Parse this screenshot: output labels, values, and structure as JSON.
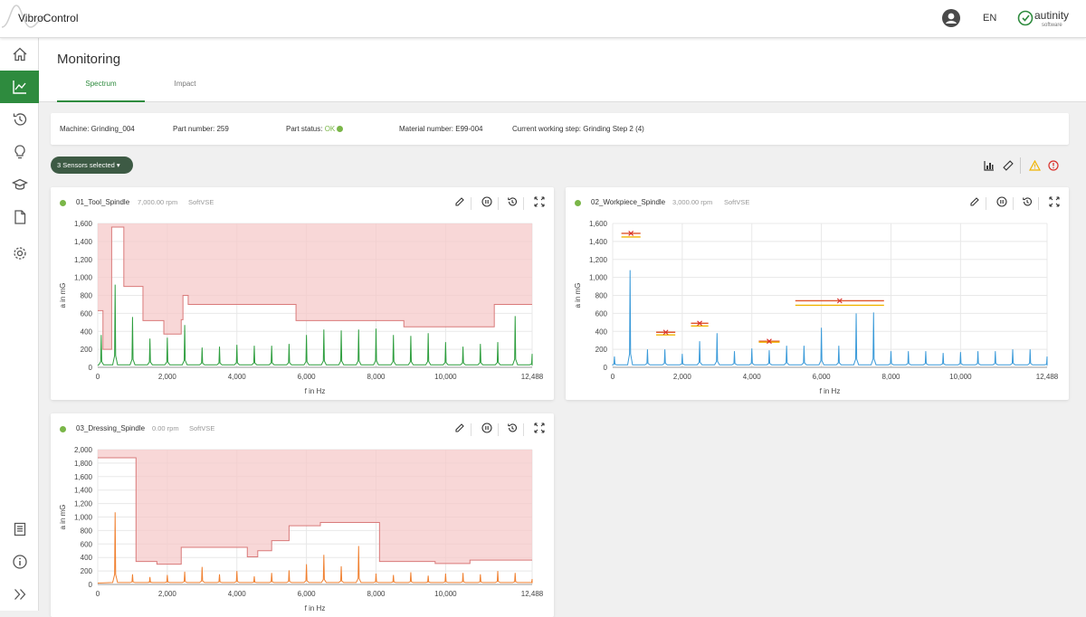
{
  "app": {
    "title": "VibroControl",
    "language": "EN",
    "logo_text": "autinity",
    "logo_sub": "software"
  },
  "sidebar": {
    "items": [
      {
        "icon": "home-icon"
      },
      {
        "icon": "chart-icon",
        "active": true
      },
      {
        "icon": "history-icon"
      },
      {
        "icon": "lightbulb-icon"
      },
      {
        "icon": "graduation-cap-icon"
      },
      {
        "icon": "document-icon"
      },
      {
        "icon": "settings-icon"
      },
      {
        "icon": "book-icon"
      },
      {
        "icon": "info-icon"
      },
      {
        "icon": "expand-icon"
      }
    ]
  },
  "page": {
    "title": "Monitoring",
    "tabs": [
      {
        "label": "Spectrum",
        "active": true
      },
      {
        "label": "Impact"
      }
    ]
  },
  "info": {
    "machine": "Machine: Grinding_004",
    "part_number": "Part number: 259",
    "part_status_label": "Part status:",
    "part_status_value": "OK",
    "material_number": "Material number: E99-004",
    "working_step": "Current working step: Grinding Step 2 (4)"
  },
  "sensors_button": "3 Sensors selected",
  "colors": {
    "accent": "#2e8b3e",
    "status_ok": "#7ab648",
    "warning": "#f0b400",
    "error": "#d9302a",
    "limit_fill": "#f5c9c9",
    "limit_line": "#d97a7a"
  },
  "cards": [
    {
      "name": "01_Tool_Spindle",
      "rpm": "7,000.00 rpm",
      "source": "SoftVSE"
    },
    {
      "name": "02_Workpiece_Spindle",
      "rpm": "3,000.00 rpm",
      "source": "SoftVSE"
    },
    {
      "name": "03_Dressing_Spindle",
      "rpm": "0.00 rpm",
      "source": "SoftVSE"
    }
  ],
  "chart_data": [
    {
      "type": "line",
      "title": "01_Tool_Spindle",
      "xlabel": "f in Hz",
      "ylabel": "a in mG",
      "xlim": [
        0,
        12488
      ],
      "ylim": [
        0,
        1600
      ],
      "grid": true,
      "xticks": [
        "0",
        "2,000",
        "4,000",
        "6,000",
        "8,000",
        "10,000",
        "12,488"
      ],
      "yticks": [
        "0",
        "200",
        "400",
        "600",
        "800",
        "1,000",
        "1,200",
        "1,400",
        "1,600"
      ],
      "series": [
        {
          "color": "#2e9e3e",
          "baseline": 20,
          "peaks": [
            [
              100,
              360
            ],
            [
              500,
              920
            ],
            [
              1000,
              560
            ],
            [
              1500,
              320
            ],
            [
              2000,
              330
            ],
            [
              2500,
              470
            ],
            [
              3000,
              220
            ],
            [
              3500,
              230
            ],
            [
              4000,
              250
            ],
            [
              4500,
              240
            ],
            [
              5000,
              240
            ],
            [
              5500,
              260
            ],
            [
              6000,
              360
            ],
            [
              6500,
              420
            ],
            [
              7000,
              410
            ],
            [
              7500,
              420
            ],
            [
              8000,
              430
            ],
            [
              8500,
              360
            ],
            [
              9000,
              350
            ],
            [
              9500,
              380
            ],
            [
              10000,
              280
            ],
            [
              10500,
              230
            ],
            [
              11000,
              260
            ],
            [
              11500,
              280
            ],
            [
              12000,
              570
            ],
            [
              12488,
              150
            ]
          ]
        }
      ],
      "limit": [
        [
          0,
          630
        ],
        [
          150,
          630
        ],
        [
          150,
          200
        ],
        [
          400,
          200
        ],
        [
          400,
          1560
        ],
        [
          750,
          1560
        ],
        [
          750,
          900
        ],
        [
          1300,
          900
        ],
        [
          1300,
          520
        ],
        [
          1900,
          520
        ],
        [
          1900,
          370
        ],
        [
          2400,
          370
        ],
        [
          2400,
          530
        ],
        [
          2450,
          530
        ],
        [
          2450,
          800
        ],
        [
          2600,
          800
        ],
        [
          2600,
          700
        ],
        [
          5700,
          700
        ],
        [
          5700,
          520
        ],
        [
          8800,
          520
        ],
        [
          8800,
          450
        ],
        [
          11400,
          450
        ],
        [
          11400,
          700
        ],
        [
          12488,
          700
        ]
      ]
    },
    {
      "type": "line",
      "title": "02_Workpiece_Spindle",
      "xlabel": "f in Hz",
      "ylabel": "a in mG",
      "xlim": [
        0,
        12488
      ],
      "ylim": [
        0,
        1600
      ],
      "grid": true,
      "xticks": [
        "0",
        "2,000",
        "4,000",
        "6,000",
        "8,000",
        "10,000",
        "12,488"
      ],
      "yticks": [
        "0",
        "200",
        "400",
        "600",
        "800",
        "1,000",
        "1,200",
        "1,400",
        "1,600"
      ],
      "series": [
        {
          "color": "#3a9ad9",
          "baseline": 20,
          "peaks": [
            [
              50,
              120
            ],
            [
              500,
              1080
            ],
            [
              1000,
              200
            ],
            [
              1500,
              200
            ],
            [
              2000,
              150
            ],
            [
              2500,
              290
            ],
            [
              3000,
              380
            ],
            [
              3500,
              180
            ],
            [
              4000,
              210
            ],
            [
              4500,
              190
            ],
            [
              5000,
              240
            ],
            [
              5500,
              240
            ],
            [
              6000,
              440
            ],
            [
              6500,
              240
            ],
            [
              7000,
              600
            ],
            [
              7500,
              610
            ],
            [
              8000,
              180
            ],
            [
              8500,
              180
            ],
            [
              9000,
              180
            ],
            [
              9500,
              160
            ],
            [
              10000,
              170
            ],
            [
              10500,
              180
            ],
            [
              11000,
              180
            ],
            [
              11500,
              200
            ],
            [
              12000,
              200
            ],
            [
              12488,
              120
            ]
          ]
        }
      ],
      "limit_markers": [
        {
          "x1": 250,
          "x2": 800,
          "upper": 1490,
          "lower": 1450
        },
        {
          "x1": 1250,
          "x2": 1800,
          "upper": 390,
          "lower": 360
        },
        {
          "x1": 2250,
          "x2": 2750,
          "upper": 490,
          "lower": 460
        },
        {
          "x1": 4200,
          "x2": 4800,
          "upper": 290,
          "lower": 280
        },
        {
          "x1": 5250,
          "x2": 7800,
          "upper": 740,
          "lower": 690
        }
      ]
    },
    {
      "type": "line",
      "title": "03_Dressing_Spindle",
      "xlabel": "f in Hz",
      "ylabel": "a in mG",
      "xlim": [
        0,
        12488
      ],
      "ylim": [
        0,
        2000
      ],
      "grid": true,
      "xticks": [
        "0",
        "2,000",
        "4,000",
        "6,000",
        "8,000",
        "10,000",
        "12,488"
      ],
      "yticks": [
        "0",
        "200",
        "400",
        "600",
        "800",
        "1,000",
        "1,200",
        "1,400",
        "1,600",
        "1,800",
        "2,000"
      ],
      "series": [
        {
          "color": "#f08030",
          "baseline": 20,
          "peaks": [
            [
              500,
              1070
            ],
            [
              1000,
              150
            ],
            [
              1500,
              110
            ],
            [
              2000,
              140
            ],
            [
              2500,
              190
            ],
            [
              3000,
              260
            ],
            [
              3500,
              150
            ],
            [
              4000,
              200
            ],
            [
              4500,
              120
            ],
            [
              5000,
              170
            ],
            [
              5500,
              210
            ],
            [
              6000,
              300
            ],
            [
              6500,
              440
            ],
            [
              7000,
              270
            ],
            [
              7500,
              570
            ],
            [
              8000,
              160
            ],
            [
              8500,
              140
            ],
            [
              9000,
              180
            ],
            [
              9500,
              130
            ],
            [
              10000,
              160
            ],
            [
              10500,
              170
            ],
            [
              11000,
              150
            ],
            [
              11500,
              200
            ],
            [
              12000,
              170
            ],
            [
              12488,
              80
            ]
          ]
        }
      ],
      "limit": [
        [
          0,
          1880
        ],
        [
          1100,
          1880
        ],
        [
          1100,
          340
        ],
        [
          1700,
          340
        ],
        [
          1700,
          300
        ],
        [
          2400,
          300
        ],
        [
          2400,
          550
        ],
        [
          4300,
          550
        ],
        [
          4300,
          410
        ],
        [
          4600,
          410
        ],
        [
          4600,
          500
        ],
        [
          5000,
          500
        ],
        [
          5000,
          650
        ],
        [
          5500,
          650
        ],
        [
          5500,
          870
        ],
        [
          6400,
          870
        ],
        [
          6400,
          920
        ],
        [
          8100,
          920
        ],
        [
          8100,
          340
        ],
        [
          9700,
          340
        ],
        [
          9700,
          310
        ],
        [
          10700,
          310
        ],
        [
          10700,
          360
        ],
        [
          12488,
          360
        ]
      ]
    }
  ]
}
